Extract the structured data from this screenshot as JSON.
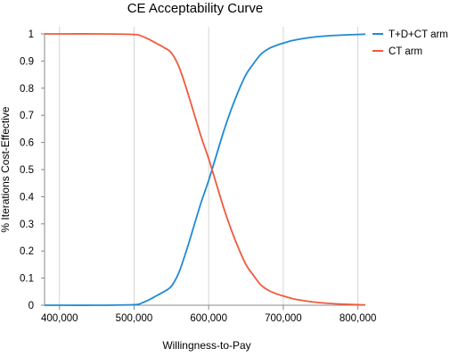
{
  "chart_data": {
    "type": "line",
    "title": "CE Acceptability Curve",
    "xlabel": "Willingness-to-Pay",
    "ylabel": "% Iterations Cost-Effective",
    "xlim": [
      380000,
      810000
    ],
    "ylim": [
      0,
      1
    ],
    "x_ticks": [
      400000,
      500000,
      600000,
      700000,
      800000
    ],
    "x_tick_labels": [
      "400,000",
      "500,000",
      "600,000",
      "700,000",
      "800,000"
    ],
    "y_ticks": [
      0,
      0.1,
      0.2,
      0.3,
      0.4,
      0.5,
      0.6,
      0.7,
      0.8,
      0.9,
      1
    ],
    "y_tick_labels": [
      "0",
      "0.1",
      "0.2",
      "0.3",
      "0.4",
      "0.5",
      "0.6",
      "0.7",
      "0.8",
      "0.9",
      "1"
    ],
    "grid": {
      "vertical": true,
      "horizontal": false
    },
    "legend": "top-right",
    "series": [
      {
        "name": "T+D+CT arm",
        "color": "#1f8ad6",
        "x": [
          380000,
          400000,
          450000,
          500000,
          510000,
          520000,
          530000,
          540000,
          550000,
          560000,
          570000,
          580000,
          590000,
          600000,
          610000,
          620000,
          630000,
          640000,
          650000,
          660000,
          670000,
          680000,
          690000,
          700000,
          710000,
          720000,
          740000,
          760000,
          780000,
          800000,
          810000
        ],
        "values": [
          0.0,
          0.0,
          0.0,
          0.002,
          0.008,
          0.02,
          0.035,
          0.05,
          0.07,
          0.12,
          0.2,
          0.29,
          0.38,
          0.46,
          0.55,
          0.64,
          0.72,
          0.79,
          0.85,
          0.89,
          0.925,
          0.945,
          0.957,
          0.966,
          0.974,
          0.98,
          0.988,
          0.993,
          0.996,
          0.998,
          0.999
        ]
      },
      {
        "name": "CT arm",
        "color": "#f05a3c",
        "x": [
          380000,
          400000,
          450000,
          500000,
          510000,
          520000,
          530000,
          540000,
          550000,
          560000,
          570000,
          580000,
          590000,
          600000,
          610000,
          620000,
          630000,
          640000,
          650000,
          660000,
          670000,
          680000,
          690000,
          700000,
          710000,
          720000,
          740000,
          760000,
          780000,
          800000,
          810000
        ],
        "values": [
          1.0,
          1.0,
          1.0,
          0.998,
          0.992,
          0.98,
          0.965,
          0.95,
          0.93,
          0.88,
          0.8,
          0.71,
          0.62,
          0.54,
          0.45,
          0.36,
          0.28,
          0.21,
          0.15,
          0.11,
          0.075,
          0.055,
          0.043,
          0.034,
          0.026,
          0.02,
          0.012,
          0.007,
          0.004,
          0.002,
          0.001
        ]
      }
    ]
  }
}
